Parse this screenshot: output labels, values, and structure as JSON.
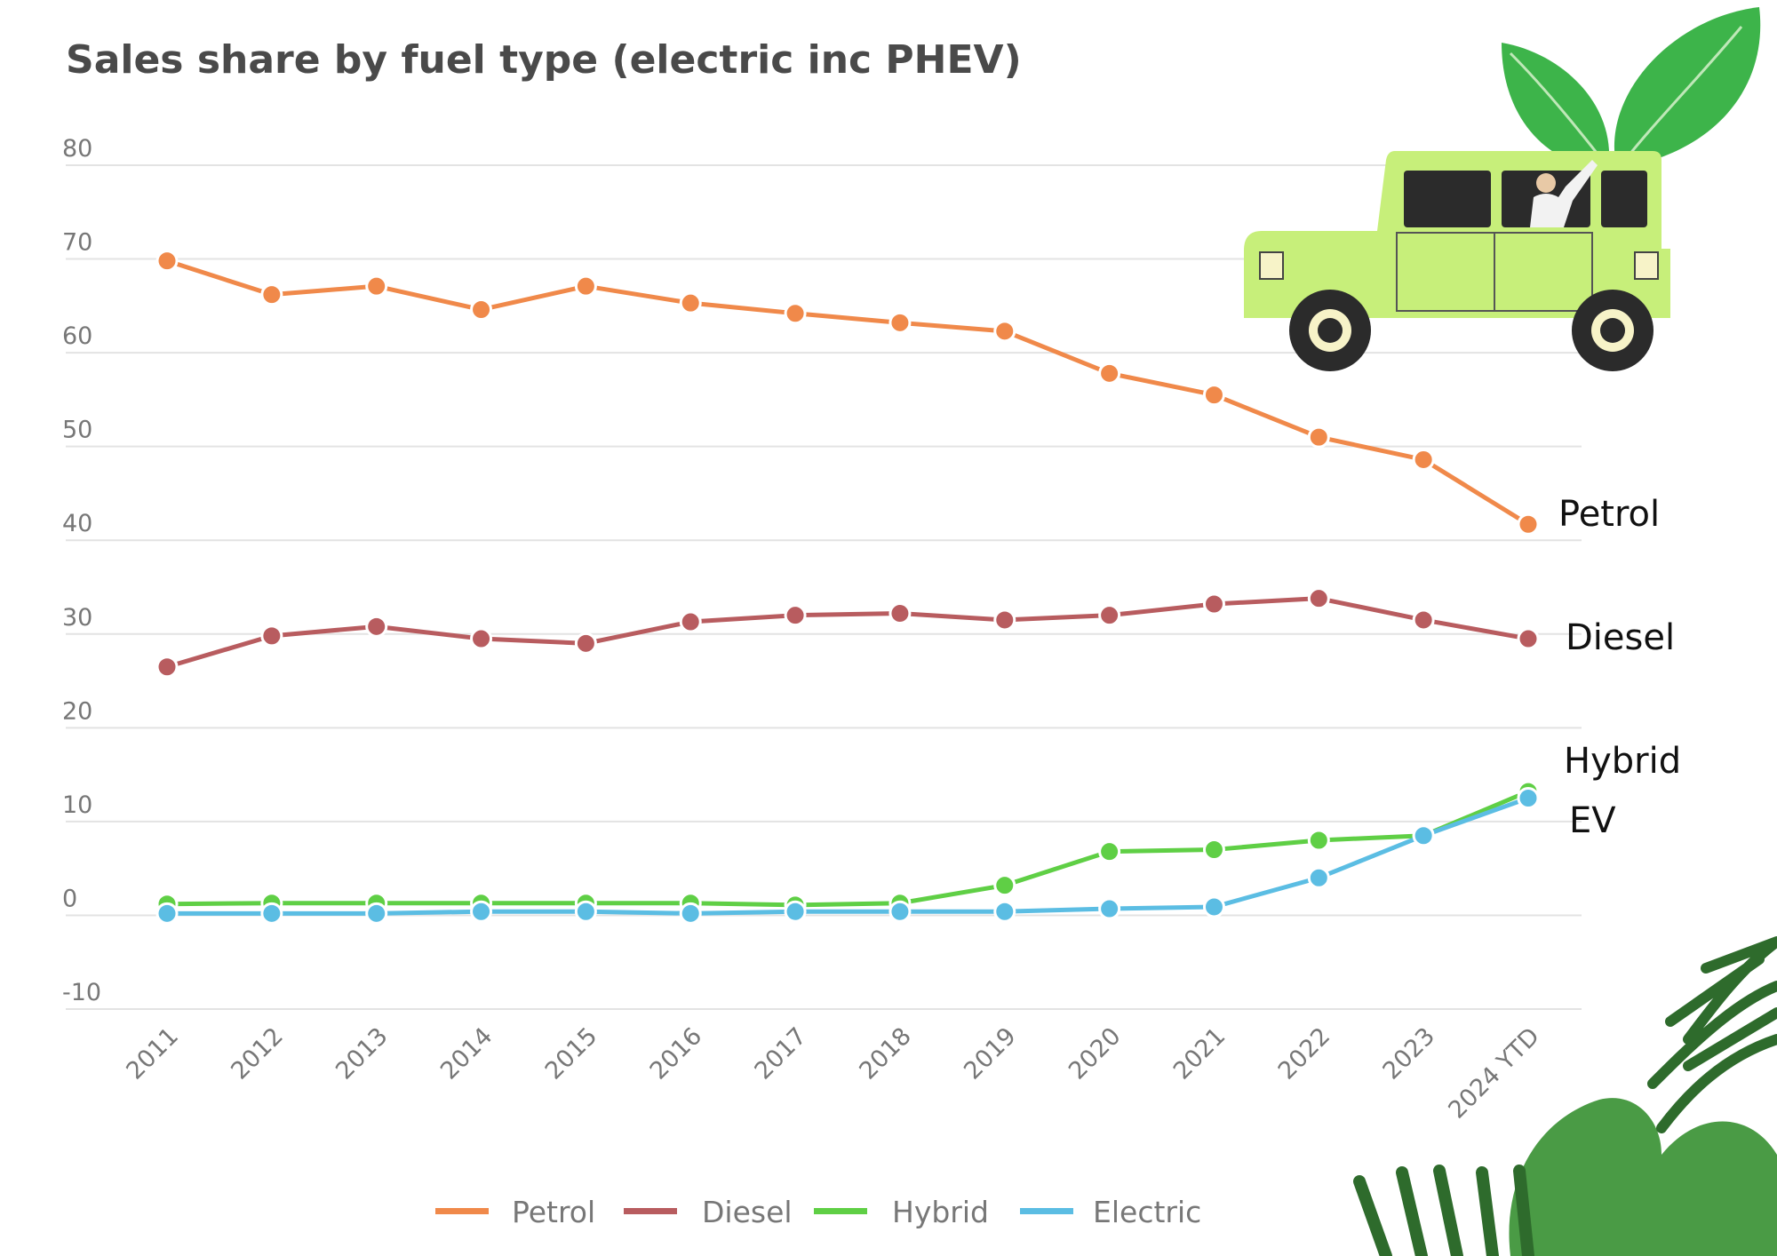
{
  "chart_data": {
    "type": "line",
    "title": "Sales share by fuel type (electric inc PHEV)",
    "xlabel": "",
    "ylabel": "",
    "ylim": [
      -10,
      80
    ],
    "yticks": [
      80,
      70,
      60,
      50,
      40,
      30,
      20,
      10,
      0,
      -10
    ],
    "categories": [
      "2011",
      "2012",
      "2013",
      "2014",
      "2015",
      "2016",
      "2017",
      "2018",
      "2019",
      "2020",
      "2021",
      "2022",
      "2023",
      "2024 YTD"
    ],
    "series": [
      {
        "name": "Petrol",
        "color": "#f0894a",
        "values": [
          69.8,
          66.2,
          67.1,
          64.6,
          67.1,
          65.3,
          64.2,
          63.2,
          62.3,
          57.8,
          55.5,
          51.0,
          48.6,
          41.7
        ]
      },
      {
        "name": "Diesel",
        "color": "#b85c5f",
        "values": [
          26.5,
          29.8,
          30.8,
          29.5,
          29.0,
          31.3,
          32.0,
          32.2,
          31.5,
          32.0,
          33.2,
          33.8,
          31.5,
          29.5
        ]
      },
      {
        "name": "Hybrid",
        "color": "#5fcf45",
        "values": [
          1.2,
          1.3,
          1.3,
          1.3,
          1.3,
          1.3,
          1.1,
          1.3,
          3.2,
          6.8,
          7.0,
          8.0,
          8.5,
          13.2
        ]
      },
      {
        "name": "Electric",
        "color": "#5bbde3",
        "values": [
          0.2,
          0.2,
          0.2,
          0.4,
          0.4,
          0.2,
          0.4,
          0.4,
          0.4,
          0.7,
          0.9,
          4.0,
          8.5,
          12.5
        ]
      }
    ],
    "legend_position": "bottom",
    "grid": true,
    "annotations": [
      "Petrol",
      "Diesel",
      "Hybrid",
      "EV"
    ]
  },
  "decorations": {
    "top_right": "car-with-leaves-illustration",
    "bottom_right": "tropical-leaves-illustration"
  }
}
